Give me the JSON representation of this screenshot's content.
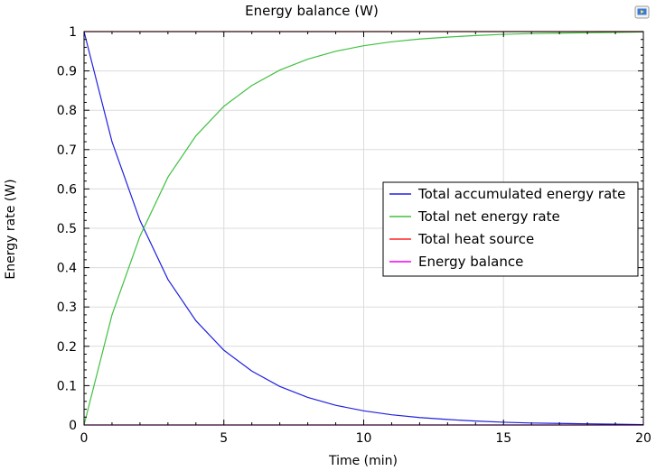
{
  "chart_data": {
    "type": "line",
    "title": "Energy balance (W)",
    "xlabel": "Time (min)",
    "ylabel": "Energy rate (W)",
    "xlim": [
      0,
      20
    ],
    "ylim": [
      0,
      1
    ],
    "x_ticks": [
      "0",
      "5",
      "10",
      "15",
      "20"
    ],
    "y_ticks": [
      "0",
      "0.1",
      "0.2",
      "0.3",
      "0.4",
      "0.5",
      "0.6",
      "0.7",
      "0.8",
      "0.9",
      "1"
    ],
    "grid": true,
    "legend_position": "right",
    "x": [
      0,
      1,
      2,
      3,
      4,
      5,
      6,
      7,
      8,
      9,
      10,
      11,
      12,
      13,
      14,
      15,
      16,
      17,
      18,
      19,
      20
    ],
    "series": [
      {
        "name": "Total accumulated energy rate",
        "color": "#2020e0",
        "values": [
          1.0,
          0.72,
          0.52,
          0.37,
          0.265,
          0.19,
          0.137,
          0.098,
          0.07,
          0.05,
          0.036,
          0.026,
          0.019,
          0.014,
          0.01,
          0.007,
          0.005,
          0.004,
          0.003,
          0.002,
          0.001
        ]
      },
      {
        "name": "Total net energy rate",
        "color": "#40c040",
        "values": [
          0.0,
          0.28,
          0.48,
          0.63,
          0.735,
          0.81,
          0.863,
          0.902,
          0.93,
          0.95,
          0.964,
          0.974,
          0.981,
          0.986,
          0.99,
          0.993,
          0.995,
          0.996,
          0.997,
          0.998,
          0.999
        ]
      },
      {
        "name": "Total heat source",
        "color": "#ff2020",
        "values": [
          1,
          1,
          1,
          1,
          1,
          1,
          1,
          1,
          1,
          1,
          1,
          1,
          1,
          1,
          1,
          1,
          1,
          1,
          1,
          1,
          1
        ]
      },
      {
        "name": "Energy balance",
        "color": "#ee00ee",
        "values": [
          0,
          0,
          0,
          0,
          0,
          0,
          0,
          0,
          0,
          0,
          0,
          0,
          0,
          0,
          0,
          0,
          0,
          0,
          0,
          0,
          0
        ]
      }
    ]
  },
  "toolbar": {
    "icon": "display-icon"
  }
}
